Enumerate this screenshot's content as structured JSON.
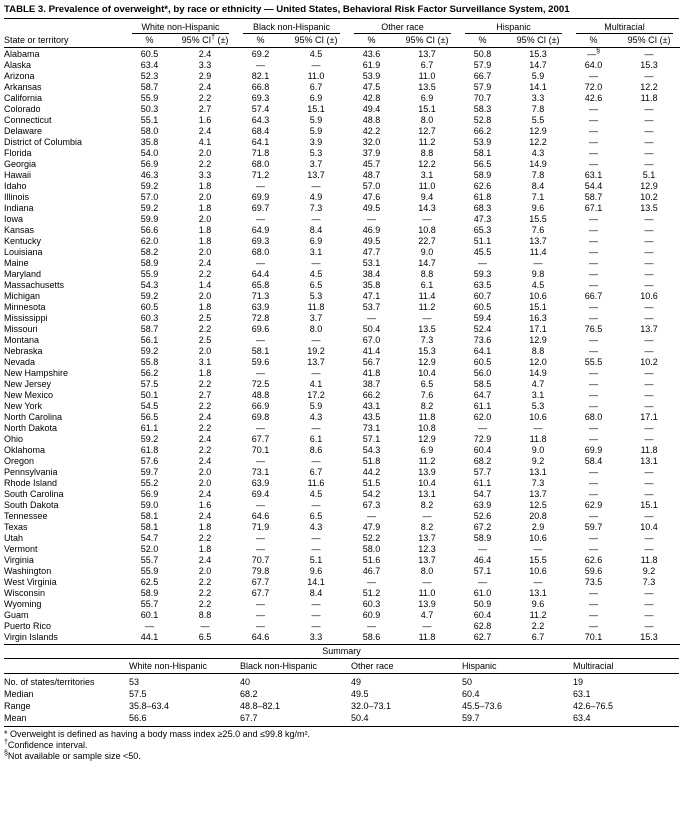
{
  "title": "TABLE 3. Prevalence of overweight*, by race or ethnicity — United States, Behavioral Risk Factor Surveillance System, 2001",
  "table": {
    "state_col_header": "State or territory",
    "pct_header": "%",
    "groups": [
      {
        "label": "White non-Hispanic",
        "ci_header": "95% CI† (±)"
      },
      {
        "label": "Black non-Hispanic",
        "ci_header": "95% CI (±)"
      },
      {
        "label": "Other race",
        "ci_header": "95% CI (±)"
      },
      {
        "label": "Hispanic",
        "ci_header": "95% CI (±)"
      },
      {
        "label": "Multiracial",
        "ci_header": "95% CI (±)"
      }
    ],
    "rows": [
      [
        "Alabama",
        "60.5",
        "2.4",
        "69.2",
        "4.5",
        "43.6",
        "13.7",
        "50.8",
        "15.3",
        "—§",
        "—"
      ],
      [
        "Alaska",
        "63.4",
        "3.3",
        "—",
        "—",
        "61.9",
        "6.7",
        "57.9",
        "14.7",
        "64.0",
        "15.3"
      ],
      [
        "Arizona",
        "52.3",
        "2.9",
        "82.1",
        "11.0",
        "53.9",
        "11.0",
        "66.7",
        "5.9",
        "—",
        "—"
      ],
      [
        "Arkansas",
        "58.7",
        "2.4",
        "66.8",
        "6.7",
        "47.5",
        "13.5",
        "57.9",
        "14.1",
        "72.0",
        "12.2"
      ],
      [
        "California",
        "55.9",
        "2.2",
        "69.3",
        "6.9",
        "42.8",
        "6.9",
        "70.7",
        "3.3",
        "42.6",
        "11.8"
      ],
      [
        "Colorado",
        "50.3",
        "2.7",
        "57.4",
        "15.1",
        "49.4",
        "15.1",
        "58.3",
        "7.8",
        "—",
        "—"
      ],
      [
        "Connecticut",
        "55.1",
        "1.6",
        "64.3",
        "5.9",
        "48.8",
        "8.0",
        "52.8",
        "5.5",
        "—",
        "—"
      ],
      [
        "Delaware",
        "58.0",
        "2.4",
        "68.4",
        "5.9",
        "42.2",
        "12.7",
        "66.2",
        "12.9",
        "—",
        "—"
      ],
      [
        "District of Columbia",
        "35.8",
        "4.1",
        "64.1",
        "3.9",
        "32.0",
        "11.2",
        "53.9",
        "12.2",
        "—",
        "—"
      ],
      [
        "Florida",
        "54.0",
        "2.0",
        "71.8",
        "5.3",
        "37.9",
        "8.8",
        "58.1",
        "4.3",
        "—",
        "—"
      ],
      [
        "Georgia",
        "56.9",
        "2.2",
        "68.0",
        "3.7",
        "45.7",
        "12.2",
        "56.5",
        "14.9",
        "—",
        "—"
      ],
      [
        "Hawaii",
        "46.3",
        "3.3",
        "71.2",
        "13.7",
        "48.7",
        "3.1",
        "58.9",
        "7.8",
        "63.1",
        "5.1"
      ],
      [
        "Idaho",
        "59.2",
        "1.8",
        "—",
        "—",
        "57.0",
        "11.0",
        "62.6",
        "8.4",
        "54.4",
        "12.9"
      ],
      [
        "Illinois",
        "57.0",
        "2.0",
        "69.9",
        "4.9",
        "47.6",
        "9.4",
        "61.8",
        "7.1",
        "58.7",
        "10.2"
      ],
      [
        "Indiana",
        "59.2",
        "1.8",
        "69.7",
        "7.3",
        "49.5",
        "14.3",
        "68.3",
        "9.6",
        "67.1",
        "13.5"
      ],
      [
        "Iowa",
        "59.9",
        "2.0",
        "—",
        "—",
        "—",
        "—",
        "47.3",
        "15.5",
        "—",
        "—"
      ],
      [
        "Kansas",
        "56.6",
        "1.8",
        "64.9",
        "8.4",
        "46.9",
        "10.8",
        "65.3",
        "7.6",
        "—",
        "—"
      ],
      [
        "Kentucky",
        "62.0",
        "1.8",
        "69.3",
        "6.9",
        "49.5",
        "22.7",
        "51.1",
        "13.7",
        "—",
        "—"
      ],
      [
        "Louisiana",
        "58.2",
        "2.0",
        "68.0",
        "3.1",
        "47.7",
        "9.0",
        "45.5",
        "11.4",
        "—",
        "—"
      ],
      [
        "Maine",
        "58.9",
        "2.4",
        "—",
        "—",
        "53.1",
        "14.7",
        "—",
        "—",
        "—",
        "—"
      ],
      [
        "Maryland",
        "55.9",
        "2.2",
        "64.4",
        "4.5",
        "38.4",
        "8.8",
        "59.3",
        "9.8",
        "—",
        "—"
      ],
      [
        "Massachusetts",
        "54.3",
        "1.4",
        "65.8",
        "6.5",
        "35.8",
        "6.1",
        "63.5",
        "4.5",
        "—",
        "—"
      ],
      [
        "Michigan",
        "59.2",
        "2.0",
        "71.3",
        "5.3",
        "47.1",
        "11.4",
        "60.7",
        "10.6",
        "66.7",
        "10.6"
      ],
      [
        "Minnesota",
        "60.5",
        "1.8",
        "63.9",
        "11.8",
        "53.7",
        "11.2",
        "60.5",
        "15.1",
        "—",
        "—"
      ],
      [
        "Mississippi",
        "60.3",
        "2.5",
        "72.8",
        "3.7",
        "—",
        "—",
        "59.4",
        "16.3",
        "—",
        "—"
      ],
      [
        "Missouri",
        "58.7",
        "2.2",
        "69.6",
        "8.0",
        "50.4",
        "13.5",
        "52.4",
        "17.1",
        "76.5",
        "13.7"
      ],
      [
        "Montana",
        "56.1",
        "2.5",
        "—",
        "—",
        "67.0",
        "7.3",
        "73.6",
        "12.9",
        "—",
        "—"
      ],
      [
        "Nebraska",
        "59.2",
        "2.0",
        "58.1",
        "19.2",
        "41.4",
        "15.3",
        "64.1",
        "8.8",
        "—",
        "—"
      ],
      [
        "Nevada",
        "55.8",
        "3.1",
        "59.6",
        "13.7",
        "56.7",
        "12.9",
        "60.5",
        "12.0",
        "55.5",
        "10.2"
      ],
      [
        "New Hampshire",
        "56.2",
        "1.8",
        "—",
        "—",
        "41.8",
        "10.4",
        "56.0",
        "14.9",
        "—",
        "—"
      ],
      [
        "New Jersey",
        "57.5",
        "2.2",
        "72.5",
        "4.1",
        "38.7",
        "6.5",
        "58.5",
        "4.7",
        "—",
        "—"
      ],
      [
        "New Mexico",
        "50.1",
        "2.7",
        "48.8",
        "17.2",
        "66.2",
        "7.6",
        "64.7",
        "3.1",
        "—",
        "—"
      ],
      [
        "New York",
        "54.5",
        "2.2",
        "66.9",
        "5.9",
        "43.1",
        "8.2",
        "61.1",
        "5.3",
        "—",
        "—"
      ],
      [
        "North Carolina",
        "56.5",
        "2.4",
        "69.8",
        "4.3",
        "43.5",
        "11.8",
        "62.0",
        "10.6",
        "68.0",
        "17.1"
      ],
      [
        "North Dakota",
        "61.1",
        "2.2",
        "—",
        "—",
        "73.1",
        "10.8",
        "—",
        "—",
        "—",
        "—"
      ],
      [
        "Ohio",
        "59.2",
        "2.4",
        "67.7",
        "6.1",
        "57.1",
        "12.9",
        "72.9",
        "11.8",
        "—",
        "—"
      ],
      [
        "Oklahoma",
        "61.8",
        "2.2",
        "70.1",
        "8.6",
        "54.3",
        "6.9",
        "60.4",
        "9.0",
        "69.9",
        "11.8"
      ],
      [
        "Oregon",
        "57.6",
        "2.4",
        "—",
        "—",
        "51.8",
        "11.2",
        "68.2",
        "9.2",
        "58.4",
        "13.1"
      ],
      [
        "Pennsylvania",
        "59.7",
        "2.0",
        "73.1",
        "6.7",
        "44.2",
        "13.9",
        "57.7",
        "13.1",
        "—",
        "—"
      ],
      [
        "Rhode Island",
        "55.2",
        "2.0",
        "63.9",
        "11.6",
        "51.5",
        "10.4",
        "61.1",
        "7.3",
        "—",
        "—"
      ],
      [
        "South Carolina",
        "56.9",
        "2.4",
        "69.4",
        "4.5",
        "54.2",
        "13.1",
        "54.7",
        "13.7",
        "—",
        "—"
      ],
      [
        "South Dakota",
        "59.0",
        "1.6",
        "—",
        "—",
        "67.3",
        "8.2",
        "63.9",
        "12.5",
        "62.9",
        "15.1"
      ],
      [
        "Tennessee",
        "58.1",
        "2.4",
        "64.6",
        "6.5",
        "—",
        "—",
        "52.6",
        "20.8",
        "—",
        "—"
      ],
      [
        "Texas",
        "58.1",
        "1.8",
        "71.9",
        "4.3",
        "47.9",
        "8.2",
        "67.2",
        "2.9",
        "59.7",
        "10.4"
      ],
      [
        "Utah",
        "54.7",
        "2.2",
        "—",
        "—",
        "52.2",
        "13.7",
        "58.9",
        "10.6",
        "—",
        "—"
      ],
      [
        "Vermont",
        "52.0",
        "1.8",
        "—",
        "—",
        "58.0",
        "12.3",
        "—",
        "—",
        "—",
        "—"
      ],
      [
        "Virginia",
        "55.7",
        "2.4",
        "70.7",
        "5.1",
        "51.6",
        "13.7",
        "46.4",
        "15.5",
        "62.6",
        "11.8"
      ],
      [
        "Washington",
        "55.9",
        "2.0",
        "79.8",
        "9.6",
        "46.7",
        "8.0",
        "57.1",
        "10.6",
        "59.6",
        "9.2"
      ],
      [
        "West Virginia",
        "62.5",
        "2.2",
        "67.7",
        "14.1",
        "—",
        "—",
        "—",
        "—",
        "73.5",
        "7.3"
      ],
      [
        "Wisconsin",
        "58.9",
        "2.2",
        "67.7",
        "8.4",
        "51.2",
        "11.0",
        "61.0",
        "13.1",
        "—",
        "—"
      ],
      [
        "Wyoming",
        "55.7",
        "2.2",
        "—",
        "—",
        "60.3",
        "13.9",
        "50.9",
        "9.6",
        "—",
        "—"
      ],
      [
        "Guam",
        "60.1",
        "8.8",
        "—",
        "—",
        "60.9",
        "4.7",
        "60.4",
        "11.2",
        "—",
        "—"
      ],
      [
        "Puerto Rico",
        "—",
        "—",
        "—",
        "—",
        "—",
        "—",
        "62.8",
        "2.2",
        "—",
        "—"
      ],
      [
        "Virgin Islands",
        "44.1",
        "6.5",
        "64.6",
        "3.3",
        "58.6",
        "11.8",
        "62.7",
        "6.7",
        "70.1",
        "15.3"
      ]
    ]
  },
  "summary": {
    "heading": "Summary",
    "col_headers": [
      "White non-Hispanic",
      "Black non-Hispanic",
      "Other race",
      "Hispanic",
      "Multiracial"
    ],
    "rows": [
      {
        "label": "No. of states/territories",
        "values": [
          "53",
          "40",
          "49",
          "50",
          "19"
        ]
      },
      {
        "label": "Median",
        "values": [
          "57.5",
          "68.2",
          "49.5",
          "60.4",
          "63.1"
        ]
      },
      {
        "label": "Range",
        "values": [
          "35.8–63.4",
          "48.8–82.1",
          "32.0–73.1",
          "45.5–73.6",
          "42.6–76.5"
        ]
      },
      {
        "label": "Mean",
        "values": [
          "56.6",
          "67.7",
          "50.4",
          "59.7",
          "63.4"
        ]
      }
    ]
  },
  "footnotes": [
    "* Overweight is defined as having a body mass index ≥25.0 and ≤99.8 kg/m².",
    "†Confidence interval.",
    "§Not available or sample size <50."
  ]
}
